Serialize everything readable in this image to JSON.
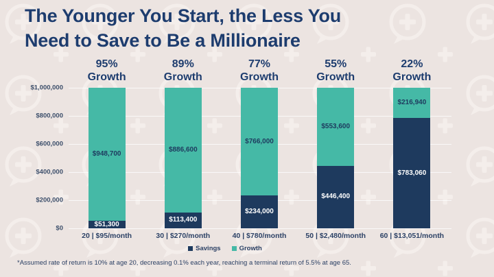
{
  "title": {
    "line1": "The Younger You Start, the Less You",
    "line2": "Need to Save to Be a Millionaire"
  },
  "colors": {
    "background": "#ece4e1",
    "pattern": "#f4eeeb",
    "savings_navy": "#1e3a5e",
    "growth_teal": "#45b9a6",
    "title_navy": "#1d3c6e",
    "axis_text": "#3d4f6b"
  },
  "legend": {
    "items": [
      {
        "label": "Savings",
        "color": "#1e3a5e"
      },
      {
        "label": "Growth",
        "color": "#45b9a6"
      }
    ]
  },
  "footnote": "*Assumed rate of return is 10% at age 20, decreasing 0.1% each year, reaching a terminal return of 5.5% at age 65.",
  "chart_data": {
    "type": "bar",
    "variant": "stacked",
    "title": "The Younger You Start, the Less You Need to Save to Be a Millionaire",
    "ylim": [
      0,
      1000000
    ],
    "grid": true,
    "legend_position": "bottom",
    "series_names": [
      "Savings",
      "Growth"
    ],
    "yticks": [
      {
        "label": "$1,000,000",
        "value": 1000000
      },
      {
        "label": "$800,000",
        "value": 800000
      },
      {
        "label": "$600,000",
        "value": 600000
      },
      {
        "label": "$400,000",
        "value": 400000
      },
      {
        "label": "$200,000",
        "value": 200000
      },
      {
        "label": "$0",
        "value": 0
      }
    ],
    "bars": [
      {
        "header_pct": "95%",
        "header_word": "Growth",
        "x_label": "20 | $95/month",
        "savings": 51300,
        "growth": 948700,
        "savings_label": "$51,300",
        "growth_label": "$948,700"
      },
      {
        "header_pct": "89%",
        "header_word": "Growth",
        "x_label": "30 | $270/month",
        "savings": 113400,
        "growth": 886600,
        "savings_label": "$113,400",
        "growth_label": "$886,600"
      },
      {
        "header_pct": "77%",
        "header_word": "Growth",
        "x_label": "40 | $780/month",
        "savings": 234000,
        "growth": 766000,
        "savings_label": "$234,000",
        "growth_label": "$766,000"
      },
      {
        "header_pct": "55%",
        "header_word": "Growth",
        "x_label": "50 | $2,480/month",
        "savings": 446400,
        "growth": 553600,
        "savings_label": "$446,400",
        "growth_label": "$553,600"
      },
      {
        "header_pct": "22%",
        "header_word": "Growth",
        "x_label": "60 | $13,051/month",
        "savings": 783060,
        "growth": 216940,
        "savings_label": "$783,060",
        "growth_label": "$216,940"
      }
    ]
  }
}
